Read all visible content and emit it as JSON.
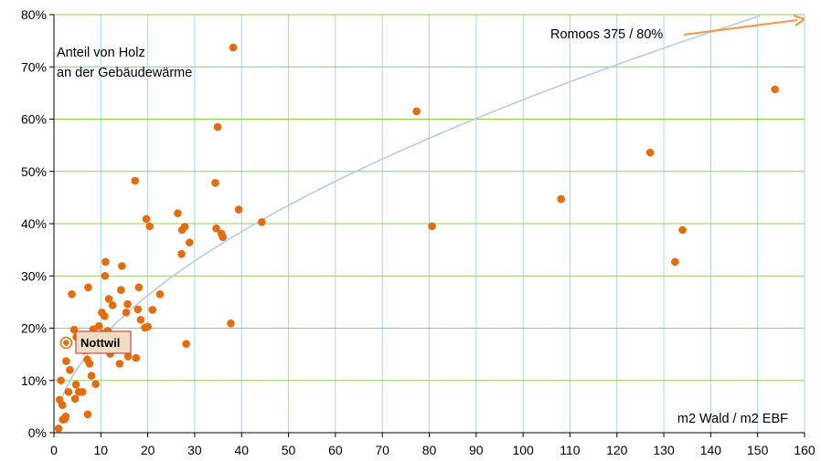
{
  "chart_data": {
    "type": "scatter",
    "title": "",
    "xlabel": "m2 Wald / m2 EBF",
    "ylabel_lines": [
      "Anteil von Holz",
      "an der Gebäudewärme"
    ],
    "xlim": [
      0,
      160
    ],
    "ylim": [
      0,
      80
    ],
    "x_ticks": [
      0,
      10,
      20,
      30,
      40,
      50,
      60,
      70,
      80,
      90,
      100,
      110,
      120,
      130,
      140,
      150,
      160
    ],
    "y_ticks": [
      0,
      10,
      20,
      30,
      40,
      50,
      60,
      70,
      80
    ],
    "y_tick_suffix": "%",
    "grid": true,
    "colors": {
      "points": "#E46C0A",
      "trend": "#B7CCE0",
      "grid_h": "#92D050",
      "grid_v": "#A5D6E8",
      "arrow": "#F79646",
      "highlight_border": "#C0504D",
      "highlight_fill": "#F2DCC4"
    },
    "trendline": {
      "type": "power",
      "a": 5.06,
      "b": 0.55
    },
    "highlight": {
      "label": "Nottwil",
      "x": 2.6,
      "y": 17.2
    },
    "annotation": {
      "text": "Romoos 375 / 80%"
    },
    "points": [
      [
        1.0,
        0.8
      ],
      [
        1.2,
        6.3
      ],
      [
        1.5,
        10.0
      ],
      [
        1.8,
        5.3
      ],
      [
        1.9,
        2.5
      ],
      [
        2.3,
        2.6
      ],
      [
        2.5,
        3.1
      ],
      [
        2.6,
        13.7
      ],
      [
        3.1,
        7.8
      ],
      [
        3.4,
        12.0
      ],
      [
        3.8,
        26.5
      ],
      [
        4.3,
        19.7
      ],
      [
        4.5,
        6.5
      ],
      [
        4.7,
        9.2
      ],
      [
        4.8,
        18.3
      ],
      [
        5.3,
        7.8
      ],
      [
        6.1,
        7.8
      ],
      [
        6.4,
        15.7
      ],
      [
        7.1,
        14.0
      ],
      [
        7.2,
        3.5
      ],
      [
        7.3,
        27.8
      ],
      [
        7.6,
        13.2
      ],
      [
        8.0,
        10.9
      ],
      [
        8.4,
        19.8
      ],
      [
        8.9,
        9.3
      ],
      [
        9.0,
        17.7
      ],
      [
        9.6,
        20.4
      ],
      [
        10.2,
        23.0
      ],
      [
        10.4,
        19.0
      ],
      [
        10.8,
        22.3
      ],
      [
        10.9,
        30.0
      ],
      [
        11.0,
        32.7
      ],
      [
        11.5,
        19.5
      ],
      [
        11.7,
        25.6
      ],
      [
        12.0,
        15.1
      ],
      [
        12.5,
        24.4
      ],
      [
        13.3,
        18.2
      ],
      [
        14.0,
        13.2
      ],
      [
        14.3,
        27.3
      ],
      [
        14.5,
        31.9
      ],
      [
        15.4,
        23.0
      ],
      [
        15.7,
        24.6
      ],
      [
        15.8,
        14.6
      ],
      [
        17.3,
        48.2
      ],
      [
        17.5,
        14.3
      ],
      [
        17.9,
        23.6
      ],
      [
        18.1,
        27.8
      ],
      [
        18.5,
        21.6
      ],
      [
        19.4,
        20.1
      ],
      [
        19.7,
        40.9
      ],
      [
        20.0,
        20.3
      ],
      [
        20.4,
        39.5
      ],
      [
        21.0,
        23.5
      ],
      [
        22.6,
        26.5
      ],
      [
        26.4,
        42.0
      ],
      [
        27.2,
        34.2
      ],
      [
        27.3,
        38.8
      ],
      [
        27.9,
        39.4
      ],
      [
        28.2,
        17.0
      ],
      [
        28.9,
        36.4
      ],
      [
        34.4,
        47.8
      ],
      [
        34.6,
        39.1
      ],
      [
        34.9,
        58.5
      ],
      [
        35.7,
        38.1
      ],
      [
        36.0,
        37.4
      ],
      [
        37.7,
        20.9
      ],
      [
        38.2,
        73.7
      ],
      [
        39.4,
        42.7
      ],
      [
        44.3,
        40.3
      ],
      [
        77.3,
        61.5
      ],
      [
        80.6,
        39.5
      ],
      [
        108.1,
        44.7
      ],
      [
        127.1,
        53.6
      ],
      [
        132.4,
        32.7
      ],
      [
        134.0,
        38.8
      ],
      [
        153.7,
        65.7
      ]
    ]
  }
}
